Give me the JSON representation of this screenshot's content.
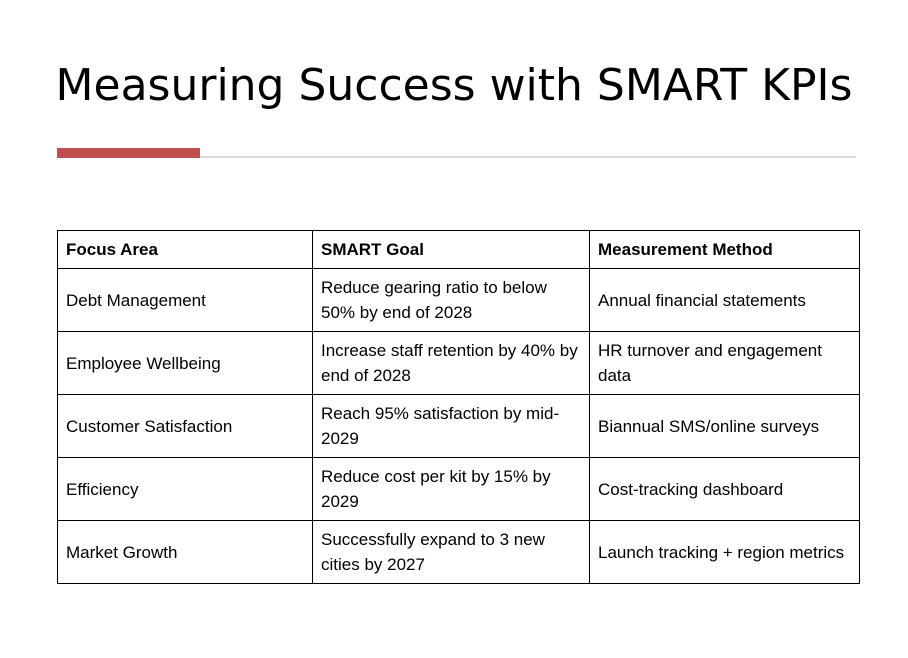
{
  "slide": {
    "title": "Measuring Success with SMART KPIs",
    "accent_color": "#c0504d",
    "rule_color": "#d9d9d9"
  },
  "table": {
    "headers": [
      "Focus Area",
      "SMART Goal",
      "Measurement Method"
    ],
    "rows": [
      [
        "Debt Management",
        "Reduce gearing ratio to below 50% by end of 2028",
        "Annual financial statements"
      ],
      [
        "Employee Wellbeing",
        "Increase staff retention by 40% by end of 2028",
        "HR turnover and engagement data"
      ],
      [
        "Customer Satisfaction",
        "Reach 95% satisfaction by mid-2029",
        "Biannual SMS/online surveys"
      ],
      [
        "Efficiency",
        "Reduce cost per kit by 15% by 2029",
        "Cost-tracking dashboard"
      ],
      [
        "Market Growth",
        "Successfully expand to 3 new cities by 2027",
        "Launch tracking + region metrics"
      ]
    ]
  }
}
